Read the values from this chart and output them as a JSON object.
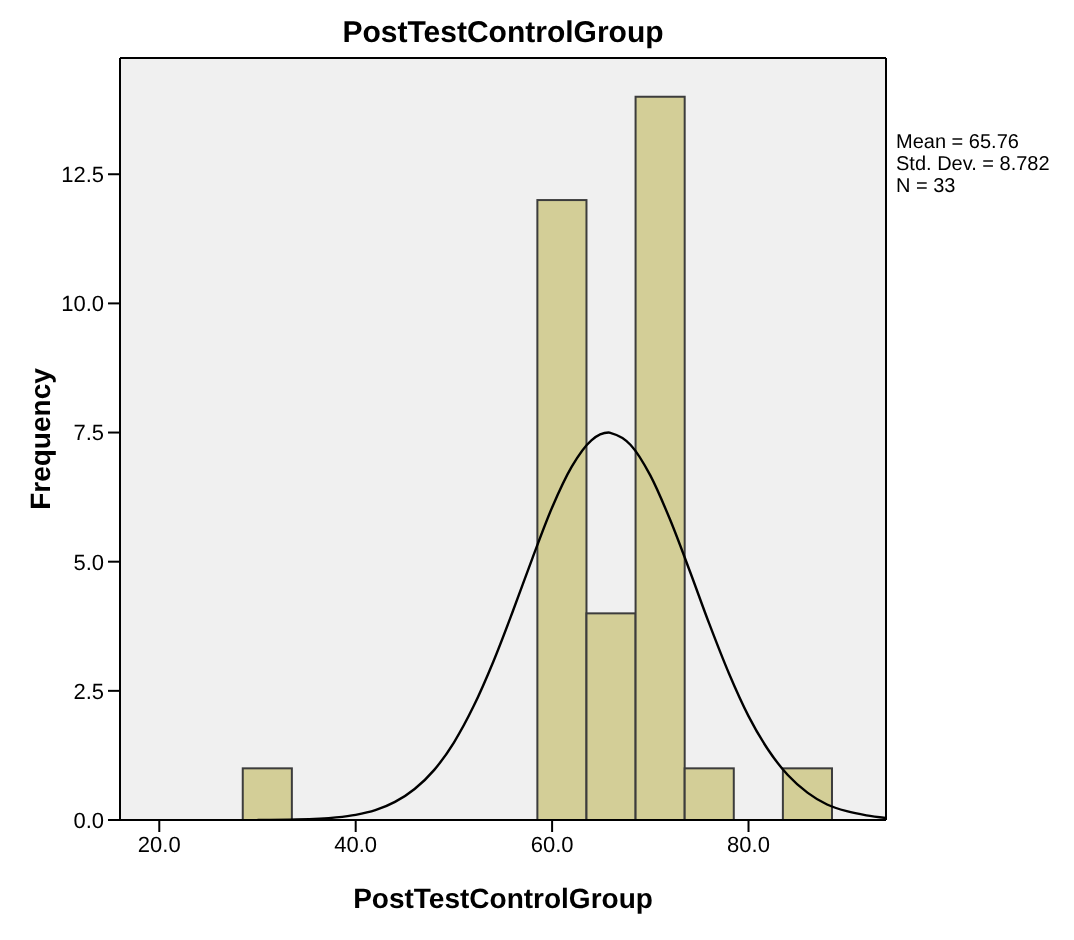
{
  "chart_data": {
    "type": "histogram",
    "title": "PostTestControlGroup",
    "xlabel": "PostTestControlGroup",
    "ylabel": "Frequency",
    "annotations": [
      "Mean = 65.76",
      "Std. Dev. = 8.782",
      "N = 33"
    ],
    "bins": [
      28.5,
      33.5,
      38.5,
      43.5,
      48.5,
      53.5,
      58.5,
      63.5,
      68.5,
      73.5,
      78.5,
      83.5,
      88.5
    ],
    "series": [
      {
        "color": "#d3ce97",
        "values": [
          1,
          0,
          0,
          0,
          0,
          0,
          12,
          4,
          14,
          1,
          0,
          1
        ]
      },
      {
        "type": "line",
        "color": "#000000",
        "x": [
          30,
          34,
          38,
          40,
          42,
          44,
          46,
          48,
          50,
          52,
          54,
          56,
          58,
          60,
          62,
          64,
          65.76,
          66,
          68,
          70,
          72,
          74,
          76,
          78,
          80,
          82,
          84,
          86,
          88,
          90,
          92,
          94
        ],
        "values": [
          0.0,
          0.01,
          0.05,
          0.1,
          0.19,
          0.35,
          0.6,
          0.97,
          1.5,
          2.2,
          3.06,
          4.04,
          5.07,
          6.05,
          6.84,
          7.35,
          7.5,
          7.49,
          7.26,
          6.67,
          5.82,
          4.83,
          3.8,
          2.84,
          2.01,
          1.36,
          0.87,
          0.53,
          0.3,
          0.17,
          0.09,
          0.04
        ]
      }
    ],
    "xlim": [
      16,
      94
    ],
    "xticks": [
      {
        "value": 20,
        "label": "20.0"
      },
      {
        "value": 40,
        "label": "40.0"
      },
      {
        "value": 60,
        "label": "60.0"
      },
      {
        "value": 80,
        "label": "80.0"
      }
    ],
    "ylim": [
      0,
      14.75
    ],
    "yticks": [
      {
        "value": 0,
        "label": "0.0"
      },
      2.5,
      {
        "value": 5,
        "label": "5.0"
      },
      7.5,
      {
        "value": 10,
        "label": "10.0"
      },
      12.5
    ],
    "marker": "none",
    "line_style": "solid"
  }
}
